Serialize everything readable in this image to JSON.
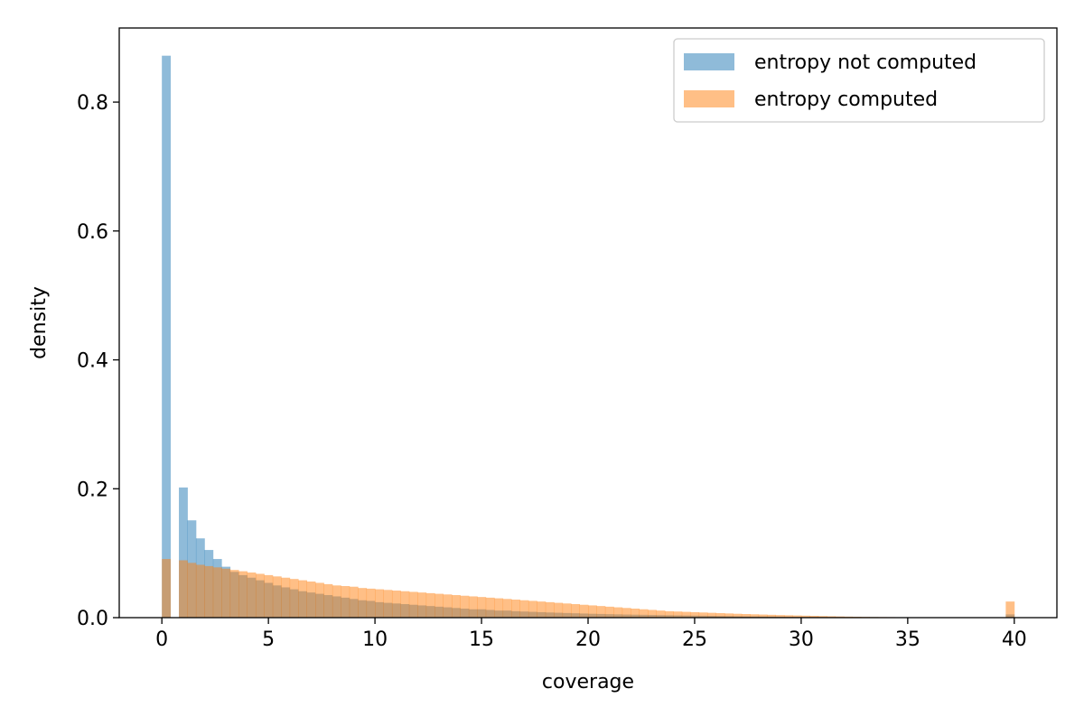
{
  "chart_data": {
    "type": "bar",
    "title": "",
    "xlabel": "coverage",
    "ylabel": "density",
    "xlim": [
      -2.0,
      42.0
    ],
    "ylim": [
      0,
      0.915
    ],
    "xticks": [
      0,
      5,
      10,
      15,
      20,
      25,
      30,
      35,
      40
    ],
    "yticks": [
      0.0,
      0.2,
      0.4,
      0.6,
      0.8
    ],
    "xtick_labels": [
      "0",
      "5",
      "10",
      "15",
      "20",
      "25",
      "30",
      "35",
      "40"
    ],
    "ytick_labels": [
      "0.0",
      "0.2",
      "0.4",
      "0.6",
      "0.8"
    ],
    "grid": false,
    "legend_position": "top-right",
    "bin_width": 0.4,
    "series": [
      {
        "name": "entropy not computed",
        "color": "#1f77b4",
        "opacity": 0.5,
        "bins_start": 0.0,
        "values": [
          0.872,
          0,
          0.202,
          0.151,
          0.123,
          0.105,
          0.091,
          0.079,
          0.071,
          0.066,
          0.062,
          0.058,
          0.054,
          0.05,
          0.047,
          0.044,
          0.041,
          0.039,
          0.037,
          0.035,
          0.033,
          0.031,
          0.029,
          0.027,
          0.026,
          0.024,
          0.023,
          0.022,
          0.021,
          0.02,
          0.019,
          0.018,
          0.017,
          0.016,
          0.015,
          0.014,
          0.013,
          0.013,
          0.012,
          0.011,
          0.011,
          0.01,
          0.0095,
          0.009,
          0.0085,
          0.008,
          0.0076,
          0.0072,
          0.0068,
          0.0064,
          0.006,
          0.0057,
          0.0054,
          0.0051,
          0.0048,
          0.0046,
          0.0044,
          0.0042,
          0.004,
          0.0038,
          0.0036,
          0.0034,
          0.0032,
          0.003,
          0.0028,
          0.0026,
          0.0024,
          0.0022,
          0.002,
          0.0019,
          0.0018,
          0.0017,
          0.0016,
          0.0015,
          0.0014,
          0.0013,
          0.0012,
          0.0011,
          0.001,
          0.001,
          0.0009,
          0.0009,
          0.0008,
          0.0008,
          0.0007,
          0.0007,
          0.0006,
          0.0006,
          0.0005,
          0.0005,
          0.0004,
          0.0004,
          0.0003,
          0.0003,
          0.0003,
          0.0002,
          0.0002,
          0.0002,
          0.0002,
          0.005
        ]
      },
      {
        "name": "entropy computed",
        "color": "#ff7f0e",
        "opacity": 0.5,
        "bins_start": 0.0,
        "values": [
          0.091,
          0,
          0.089,
          0.085,
          0.082,
          0.08,
          0.078,
          0.076,
          0.074,
          0.072,
          0.07,
          0.068,
          0.066,
          0.064,
          0.062,
          0.06,
          0.058,
          0.056,
          0.054,
          0.052,
          0.05,
          0.049,
          0.048,
          0.046,
          0.045,
          0.044,
          0.043,
          0.042,
          0.041,
          0.04,
          0.039,
          0.038,
          0.037,
          0.036,
          0.035,
          0.034,
          0.033,
          0.032,
          0.031,
          0.03,
          0.029,
          0.028,
          0.027,
          0.026,
          0.025,
          0.024,
          0.023,
          0.022,
          0.021,
          0.02,
          0.019,
          0.018,
          0.017,
          0.016,
          0.015,
          0.014,
          0.013,
          0.012,
          0.011,
          0.01,
          0.0095,
          0.009,
          0.0085,
          0.008,
          0.0075,
          0.007,
          0.0065,
          0.006,
          0.0056,
          0.0052,
          0.0048,
          0.0044,
          0.004,
          0.0037,
          0.0034,
          0.0031,
          0.0028,
          0.0025,
          0.0022,
          0.0019,
          0.0016,
          0.0014,
          0.0012,
          0.001,
          0.0009,
          0.0008,
          0.0007,
          0.0006,
          0.0005,
          0.0004,
          0.0003,
          0.0003,
          0.0002,
          0.0002,
          0.0001,
          0.0001,
          0.0001,
          0.0001,
          0.0001,
          0.025
        ]
      }
    ]
  }
}
